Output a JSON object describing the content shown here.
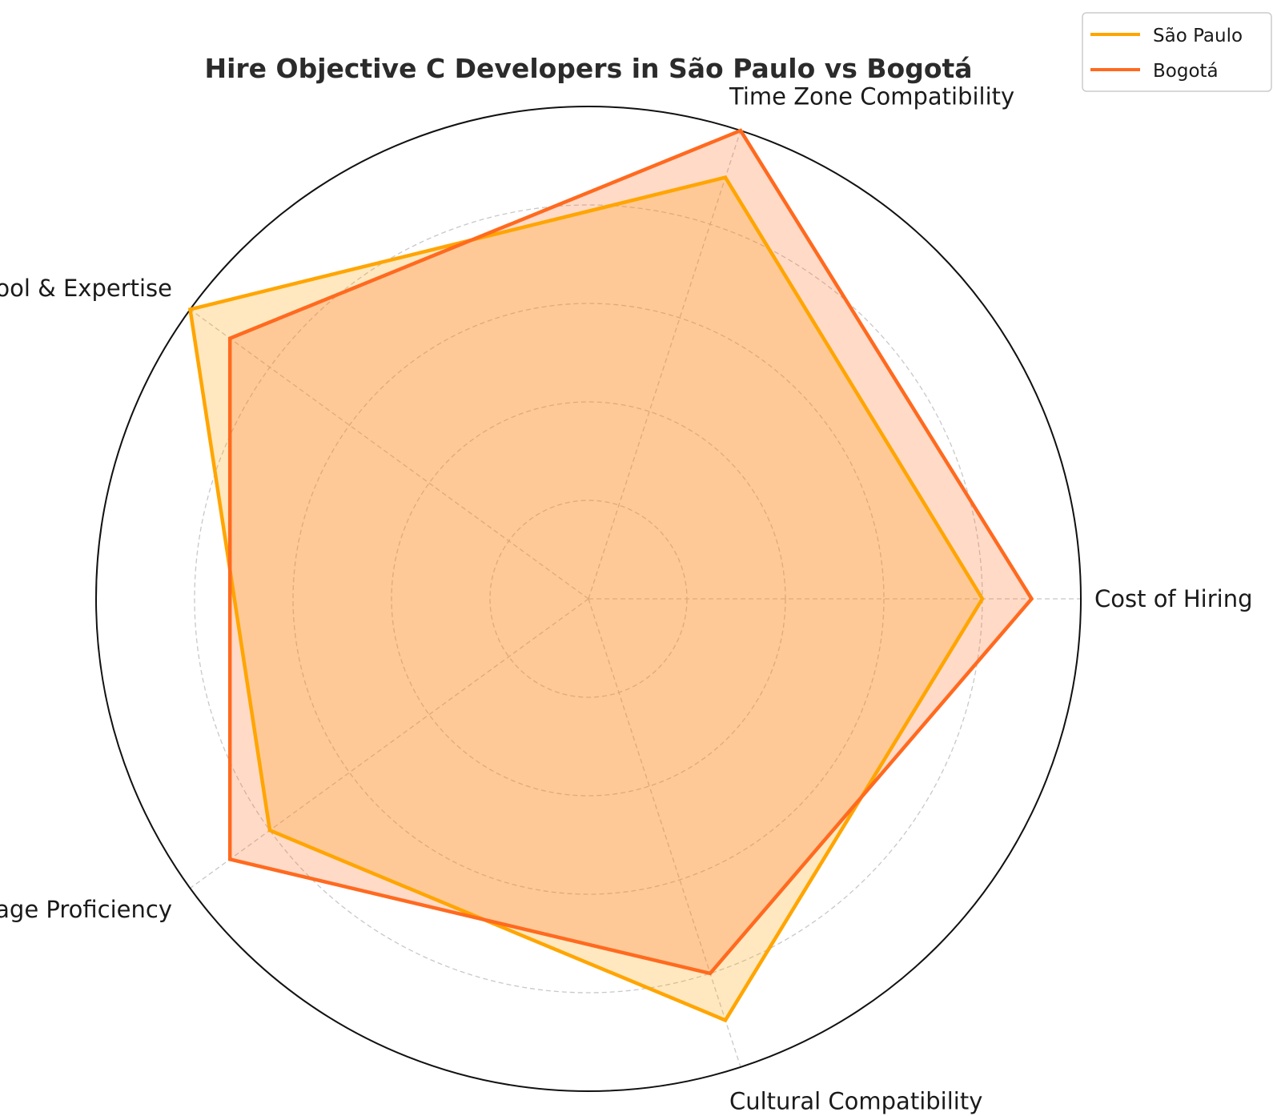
{
  "chart_data": {
    "type": "radar",
    "title": "Hire Objective C Developers in São Paulo vs Bogotá",
    "categories": [
      "Cost of Hiring",
      "Time Zone Compatibility",
      "Talent Pool & Expertise",
      "Language Proficiency",
      "Cultural Compatibility"
    ],
    "rlim": [
      0,
      10
    ],
    "grid": true,
    "legend": "top-right",
    "series": [
      {
        "name": "São Paulo",
        "color": "#FFA500",
        "values": [
          8,
          9,
          10,
          8,
          9
        ]
      },
      {
        "name": "Bogotá",
        "color": "#FF6A1F",
        "values": [
          9,
          10,
          9,
          9,
          8
        ]
      }
    ]
  }
}
